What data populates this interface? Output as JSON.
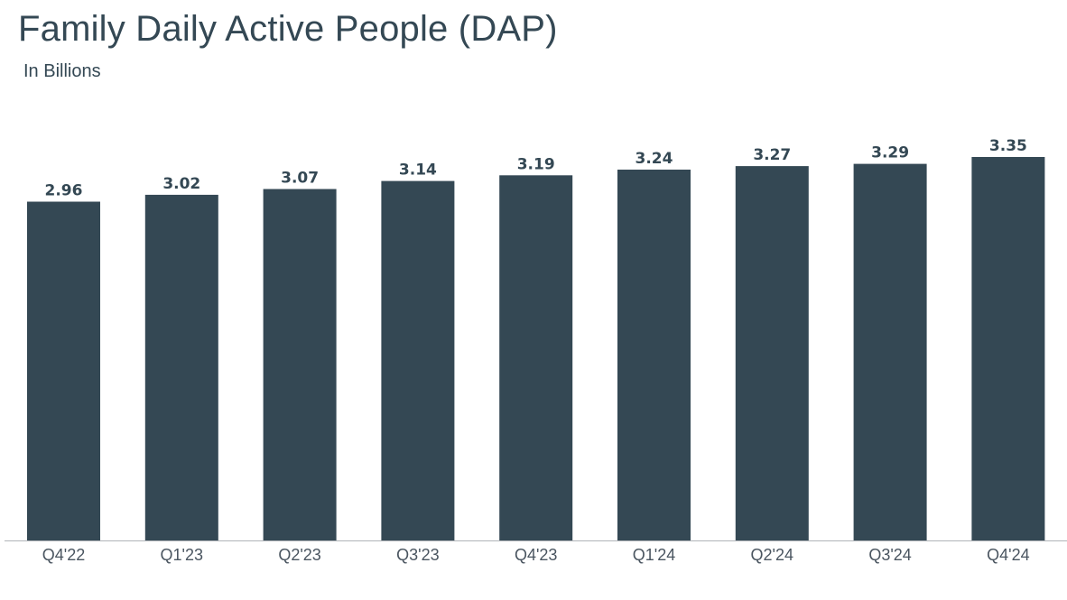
{
  "chart_data": {
    "type": "bar",
    "title": "Family Daily Active People (DAP)",
    "subtitle": "In Billions",
    "categories": [
      "Q4'22",
      "Q1'23",
      "Q2'23",
      "Q3'23",
      "Q4'23",
      "Q1'24",
      "Q2'24",
      "Q3'24",
      "Q4'24"
    ],
    "values": [
      2.96,
      3.02,
      3.07,
      3.14,
      3.19,
      3.24,
      3.27,
      3.29,
      3.35
    ],
    "value_labels": [
      "2.96",
      "3.02",
      "3.07",
      "3.14",
      "3.19",
      "3.24",
      "3.27",
      "3.29",
      "3.35"
    ],
    "ylim": [
      0,
      3.35
    ],
    "grid": false,
    "legend": "none",
    "colors": {
      "bar": "#344854",
      "text": "#344854",
      "axis": "#b0b4b8"
    }
  }
}
